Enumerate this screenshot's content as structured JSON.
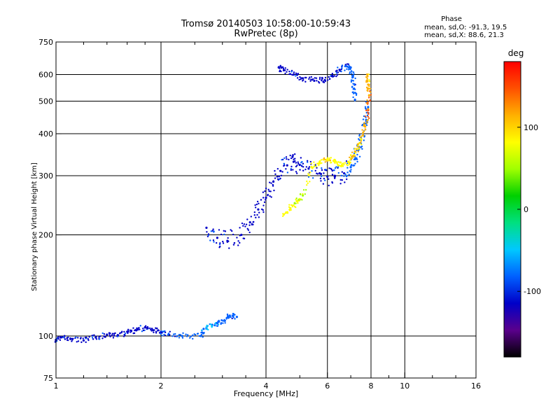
{
  "header": {
    "title_line1": "Tromsø 20140503 10:58:00-10:59:43",
    "title_line2": "RwPretec (8p)",
    "phase_title": "Phase",
    "phase_line1": "mean, sd,O: -91.3, 19.5",
    "phase_line2": "mean, sd,X:  88.6, 21.3"
  },
  "colorbar": {
    "unit_label": "deg",
    "ticks": [
      100,
      0,
      -100
    ],
    "range": [
      -180,
      180
    ],
    "colors": [
      "#000000",
      "#5a008c",
      "#0000c8",
      "#0060ff",
      "#00c8ff",
      "#00e080",
      "#00d000",
      "#a0ff00",
      "#ffff00",
      "#ffb000",
      "#ff5000",
      "#ff0000"
    ]
  },
  "chart_data": {
    "type": "scatter",
    "title": "Tromsø 20140503 10:58:00-10:59:43",
    "subtitle": "RwPretec (8p)",
    "xlabel": "Frequency [MHz]",
    "ylabel": "Stationary phase Virtual Height [km]",
    "xscale": "log",
    "yscale": "log",
    "xlim": [
      1,
      16
    ],
    "ylim": [
      75,
      750
    ],
    "xticks": [
      1,
      2,
      4,
      6,
      8,
      10,
      16
    ],
    "yticks": [
      75,
      100,
      200,
      300,
      400,
      500,
      600,
      750
    ],
    "xgrid": [
      2,
      4,
      6,
      8,
      10
    ],
    "ygrid": [
      100,
      200,
      300,
      400,
      500,
      600
    ],
    "grid": true,
    "series": [
      {
        "values": [
          [
            1.0,
            97,
            -105
          ],
          [
            1.03,
            99,
            -100
          ],
          [
            1.1,
            98,
            -110
          ],
          [
            1.2,
            97,
            -105
          ],
          [
            1.3,
            99,
            -100
          ],
          [
            1.4,
            101,
            -110
          ],
          [
            1.5,
            100,
            -100
          ],
          [
            1.6,
            103,
            -110
          ],
          [
            1.7,
            104,
            -105
          ],
          [
            1.8,
            106,
            -100
          ],
          [
            1.9,
            104,
            -110
          ],
          [
            2.0,
            103,
            -100
          ],
          [
            2.1,
            101,
            -95
          ],
          [
            2.3,
            100,
            -80
          ],
          [
            2.6,
            100,
            -80
          ],
          [
            2.65,
            105,
            -70
          ],
          [
            2.8,
            107,
            -60
          ],
          [
            2.9,
            109,
            -75
          ],
          [
            3.05,
            111,
            -85
          ],
          [
            3.15,
            115,
            -90
          ],
          [
            3.3,
            114,
            -95
          ]
        ]
      },
      {
        "values": [
          [
            2.7,
            210,
            -100
          ],
          [
            2.9,
            196,
            -100
          ],
          [
            3.1,
            192,
            -110
          ],
          [
            3.4,
            200,
            -120
          ],
          [
            3.6,
            218,
            -115
          ],
          [
            3.8,
            238,
            -110
          ],
          [
            4.0,
            258,
            -110
          ],
          [
            4.2,
            288,
            -105
          ],
          [
            4.4,
            310,
            -105
          ],
          [
            4.6,
            322,
            -100
          ],
          [
            4.8,
            330,
            -110
          ],
          [
            5.0,
            323,
            -105
          ],
          [
            5.3,
            315,
            -100
          ],
          [
            5.7,
            305,
            -100
          ],
          [
            6.0,
            298,
            -105
          ],
          [
            6.3,
            298,
            -100
          ],
          [
            6.7,
            305,
            -100
          ],
          [
            7.0,
            318,
            -90
          ],
          [
            7.2,
            336,
            -80
          ],
          [
            7.4,
            365,
            -80
          ],
          [
            7.6,
            400,
            -85
          ],
          [
            7.75,
            440,
            -80
          ],
          [
            7.85,
            480,
            -75
          ]
        ]
      },
      {
        "values": [
          [
            4.35,
            630,
            -110
          ],
          [
            4.5,
            618,
            -110
          ],
          [
            4.8,
            600,
            -105
          ],
          [
            5.1,
            585,
            -110
          ],
          [
            5.5,
            575,
            -105
          ],
          [
            5.9,
            578,
            -110
          ],
          [
            6.2,
            595,
            -105
          ],
          [
            6.5,
            620,
            -100
          ],
          [
            6.8,
            635,
            -95
          ],
          [
            7.0,
            630,
            -90
          ],
          [
            7.1,
            590,
            -90
          ],
          [
            7.15,
            545,
            -95
          ],
          [
            7.2,
            505,
            -90
          ]
        ]
      },
      {
        "values": [
          [
            4.5,
            230,
            75
          ],
          [
            4.7,
            240,
            80
          ],
          [
            4.9,
            252,
            70
          ],
          [
            5.1,
            262,
            65
          ],
          [
            5.4,
            318,
            85
          ],
          [
            5.7,
            330,
            90
          ],
          [
            6.0,
            335,
            95
          ],
          [
            6.3,
            330,
            85
          ],
          [
            6.6,
            322,
            80
          ],
          [
            6.9,
            330,
            95
          ],
          [
            7.1,
            342,
            100
          ],
          [
            7.3,
            360,
            100
          ],
          [
            7.5,
            385,
            95
          ],
          [
            7.7,
            420,
            110
          ],
          [
            7.85,
            470,
            140
          ],
          [
            7.9,
            520,
            130
          ],
          [
            7.85,
            560,
            110
          ],
          [
            7.8,
            600,
            100
          ]
        ]
      }
    ]
  }
}
